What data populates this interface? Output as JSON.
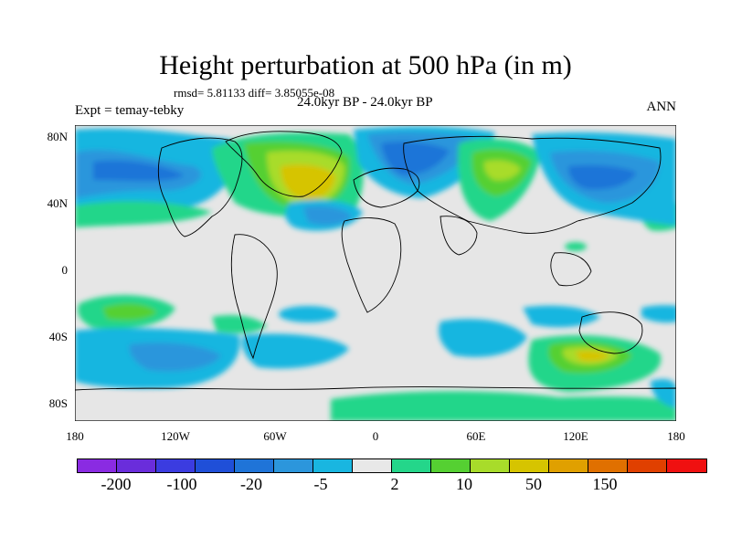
{
  "header": {
    "title": "Height perturbation at 500 hPa (in m)",
    "stats": "rmsd= 5.81133 diff= 3.85055e-08",
    "expt": "Expt = temay-tebky",
    "period": "24.0kyr BP - 24.0kyr BP",
    "season": "ANN"
  },
  "axes": {
    "x_labels": [
      "180",
      "120W",
      "60W",
      "0",
      "60E",
      "120E",
      "180"
    ],
    "y_labels": [
      "80N",
      "40N",
      "0",
      "40S",
      "80S"
    ]
  },
  "colorbar": {
    "colors": [
      "#8a2be2",
      "#6a2ddb",
      "#3b3ce0",
      "#1f4fd8",
      "#1f74d8",
      "#2c96dc",
      "#19b6e0",
      "#e8e8e8",
      "#24d68a",
      "#55d032",
      "#a8dc2a",
      "#d6c400",
      "#e0a000",
      "#e07000",
      "#e04000",
      "#f01010"
    ],
    "labels": [
      "-200",
      "-100",
      "-20",
      "-5",
      "2",
      "10",
      "50",
      "150"
    ]
  }
}
